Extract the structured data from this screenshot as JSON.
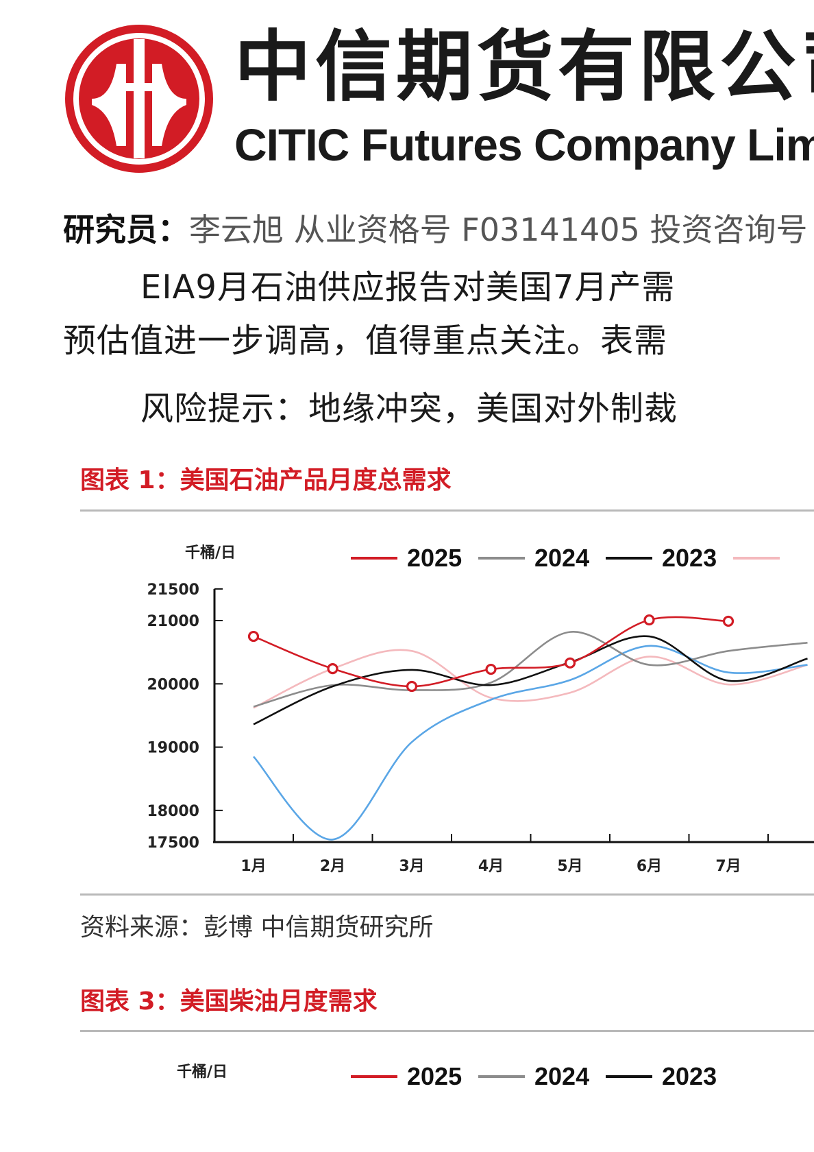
{
  "header": {
    "company_cn": "中信期货有限公司",
    "company_en": "CITIC Futures Company Limited",
    "logo_name": "citic-logo",
    "brand_color": "#d21c25"
  },
  "researcher": {
    "label": "研究员：",
    "text": "李云旭  从业资格号 F03141405 投资咨询号"
  },
  "body": {
    "para1_line1": "EIA9月石油供应报告对美国7月产需",
    "para1_line2": "预估值进一步调高，值得重点关注。表需",
    "para2": "风险提示：地缘冲突，美国对外制裁"
  },
  "figure1": {
    "title": "图表 1：美国石油产品月度总需求",
    "source": "资料来源：彭博 中信期货研究所"
  },
  "figure3": {
    "title": "图表 3：美国柴油月度需求",
    "unit": "千桶/日",
    "legend": [
      "2025",
      "2024",
      "2023"
    ]
  },
  "chart_data": {
    "type": "line",
    "title": "图表 1：美国石油产品月度总需求",
    "ylabel": "千桶/日",
    "xlabel": "",
    "categories": [
      "1月",
      "2月",
      "3月",
      "4月",
      "5月",
      "6月",
      "7月"
    ],
    "yticks": [
      17500,
      18000,
      19000,
      20000,
      21000,
      21500
    ],
    "ylim": [
      17500,
      21500
    ],
    "legend_position": "top",
    "series": [
      {
        "name": "2025",
        "color": "#d21c25",
        "markers": true,
        "values": [
          20750,
          20240,
          19960,
          20230,
          20330,
          21010,
          20990
        ]
      },
      {
        "name": "2024",
        "color": "#8c8c8c",
        "markers": false,
        "values": [
          19640,
          19980,
          19900,
          20020,
          20820,
          20300,
          20520
        ]
      },
      {
        "name": "2023",
        "color": "#111111",
        "markers": false,
        "values": [
          19360,
          19960,
          20220,
          19980,
          20340,
          20750,
          20050
        ]
      },
      {
        "name": "",
        "color": "#f4b9bd",
        "markers": false,
        "values": [
          19620,
          20240,
          20520,
          19780,
          19860,
          20430,
          19990
        ]
      },
      {
        "name": "",
        "color": "#5aa6e6",
        "markers": false,
        "values": [
          18850,
          17540,
          19080,
          19750,
          20060,
          20600,
          20180
        ]
      }
    ]
  }
}
